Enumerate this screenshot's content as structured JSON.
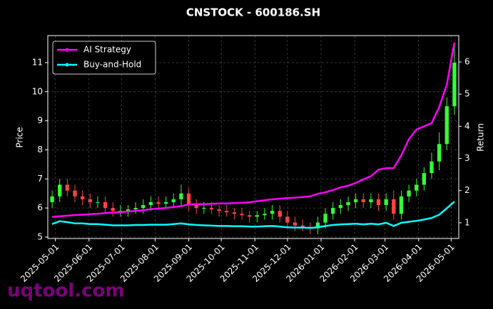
{
  "chart_data": {
    "type": "candlestick",
    "title": "CNSTOCK - 600186.SH",
    "y_label": "Price",
    "y2_label": "Return",
    "watermark": "uqtool.com",
    "x": [
      "2025-04-28",
      "2025-05-05",
      "2025-05-12",
      "2025-05-19",
      "2025-05-26",
      "2025-06-02",
      "2025-06-09",
      "2025-06-16",
      "2025-06-23",
      "2025-06-30",
      "2025-07-07",
      "2025-07-14",
      "2025-07-21",
      "2025-07-28",
      "2025-08-04",
      "2025-08-11",
      "2025-08-18",
      "2025-08-25",
      "2025-09-01",
      "2025-09-08",
      "2025-09-15",
      "2025-09-22",
      "2025-09-29",
      "2025-10-06",
      "2025-10-13",
      "2025-10-20",
      "2025-10-27",
      "2025-11-03",
      "2025-11-10",
      "2025-11-17",
      "2025-11-24",
      "2025-12-01",
      "2025-12-08",
      "2025-12-15",
      "2025-12-22",
      "2025-12-29",
      "2026-01-05",
      "2026-01-12",
      "2026-01-19",
      "2026-01-26",
      "2026-02-02",
      "2026-02-09",
      "2026-02-16",
      "2026-02-23",
      "2026-03-02",
      "2026-03-09",
      "2026-03-16",
      "2026-03-23",
      "2026-03-30",
      "2026-04-06",
      "2026-04-13",
      "2026-04-20",
      "2026-04-27",
      "2026-05-04"
    ],
    "open": [
      6.2,
      6.4,
      6.8,
      6.6,
      6.4,
      6.3,
      6.2,
      6.2,
      6.0,
      5.9,
      5.9,
      5.95,
      6.0,
      6.1,
      6.2,
      6.15,
      6.2,
      6.3,
      6.5,
      6.1,
      6.0,
      6.0,
      5.95,
      5.9,
      5.85,
      5.8,
      5.75,
      5.7,
      5.75,
      5.8,
      5.9,
      5.7,
      5.5,
      5.4,
      5.35,
      5.3,
      5.5,
      5.8,
      6.0,
      6.1,
      6.2,
      6.3,
      6.2,
      6.3,
      6.1,
      6.3,
      5.8,
      6.4,
      6.6,
      6.8,
      7.2,
      7.6,
      8.2,
      9.5
    ],
    "high": [
      6.6,
      7.0,
      7.0,
      6.8,
      6.6,
      6.5,
      6.4,
      6.4,
      6.2,
      6.1,
      6.1,
      6.2,
      6.3,
      6.4,
      6.4,
      6.4,
      6.5,
      6.8,
      6.7,
      6.3,
      6.2,
      6.2,
      6.1,
      6.1,
      6.0,
      6.0,
      5.9,
      5.9,
      6.0,
      6.1,
      6.1,
      5.9,
      5.7,
      5.6,
      5.5,
      5.7,
      6.0,
      6.2,
      6.3,
      6.4,
      6.5,
      6.5,
      6.5,
      6.5,
      6.5,
      6.6,
      6.6,
      6.8,
      7.0,
      7.4,
      7.9,
      8.6,
      9.8,
      11.6
    ],
    "low": [
      6.0,
      6.2,
      6.4,
      6.2,
      6.1,
      6.0,
      6.0,
      5.8,
      5.7,
      5.7,
      5.7,
      5.8,
      5.8,
      5.9,
      6.0,
      6.0,
      6.0,
      6.1,
      5.9,
      5.8,
      5.8,
      5.8,
      5.7,
      5.7,
      5.6,
      5.6,
      5.5,
      5.5,
      5.6,
      5.6,
      5.5,
      5.3,
      5.2,
      5.2,
      5.1,
      5.1,
      5.3,
      5.6,
      5.8,
      5.9,
      6.0,
      6.0,
      6.0,
      5.9,
      5.9,
      5.6,
      5.6,
      6.2,
      6.4,
      6.6,
      7.0,
      7.3,
      8.0,
      9.2
    ],
    "close": [
      6.4,
      6.8,
      6.6,
      6.4,
      6.3,
      6.2,
      6.2,
      6.0,
      5.9,
      5.9,
      5.95,
      6.0,
      6.1,
      6.2,
      6.15,
      6.2,
      6.3,
      6.5,
      6.1,
      6.0,
      6.0,
      5.95,
      5.9,
      5.85,
      5.8,
      5.75,
      5.7,
      5.75,
      5.8,
      5.9,
      5.7,
      5.5,
      5.4,
      5.35,
      5.3,
      5.5,
      5.8,
      6.0,
      6.1,
      6.2,
      6.3,
      6.2,
      6.3,
      6.1,
      6.3,
      5.8,
      6.4,
      6.6,
      6.8,
      7.2,
      7.6,
      8.2,
      9.5,
      11.0
    ],
    "up_color": "#33ff33",
    "down_color": "#ff4444",
    "series": [
      {
        "name": "AI Strategy",
        "color": "#ff00ff",
        "axis": "y2",
        "values": [
          1.18,
          1.2,
          1.22,
          1.24,
          1.25,
          1.27,
          1.28,
          1.3,
          1.32,
          1.33,
          1.35,
          1.37,
          1.39,
          1.42,
          1.44,
          1.46,
          1.49,
          1.52,
          1.57,
          1.58,
          1.58,
          1.59,
          1.6,
          1.6,
          1.61,
          1.62,
          1.64,
          1.67,
          1.7,
          1.73,
          1.75,
          1.77,
          1.78,
          1.8,
          1.82,
          1.9,
          1.95,
          2.02,
          2.1,
          2.15,
          2.24,
          2.35,
          2.45,
          2.65,
          2.7,
          2.7,
          3.1,
          3.6,
          3.9,
          4.0,
          4.1,
          4.6,
          5.3,
          6.6
        ]
      },
      {
        "name": "Buy-and-Hold",
        "color": "#00ffff",
        "axis": "y2",
        "values": [
          0.96,
          1.05,
          1.02,
          0.98,
          0.98,
          0.96,
          0.96,
          0.94,
          0.92,
          0.92,
          0.92,
          0.93,
          0.93,
          0.94,
          0.94,
          0.94,
          0.96,
          0.98,
          0.95,
          0.93,
          0.92,
          0.91,
          0.9,
          0.9,
          0.89,
          0.89,
          0.88,
          0.88,
          0.89,
          0.9,
          0.88,
          0.86,
          0.85,
          0.85,
          0.84,
          0.86,
          0.9,
          0.93,
          0.95,
          0.96,
          0.97,
          0.95,
          0.97,
          0.95,
          1.0,
          0.9,
          1.0,
          1.03,
          1.06,
          1.1,
          1.15,
          1.25,
          1.45,
          1.66
        ]
      }
    ],
    "xlim": [
      "2025-04-24",
      "2026-05-08"
    ],
    "xticks": [
      "2025-05-01",
      "2025-06-01",
      "2025-07-01",
      "2025-08-01",
      "2025-09-01",
      "2025-10-01",
      "2025-11-01",
      "2025-12-01",
      "2026-01-01",
      "2026-02-01",
      "2026-03-01",
      "2026-04-01",
      "2026-05-01"
    ],
    "ylim": [
      4.95,
      11.93
    ],
    "yticks": [
      5,
      6,
      7,
      8,
      9,
      10,
      11
    ],
    "y2lim": [
      0.51,
      6.82
    ],
    "y2ticks": [
      1,
      2,
      3,
      4,
      5,
      6
    ],
    "grid": true,
    "legend": "upper-left"
  }
}
